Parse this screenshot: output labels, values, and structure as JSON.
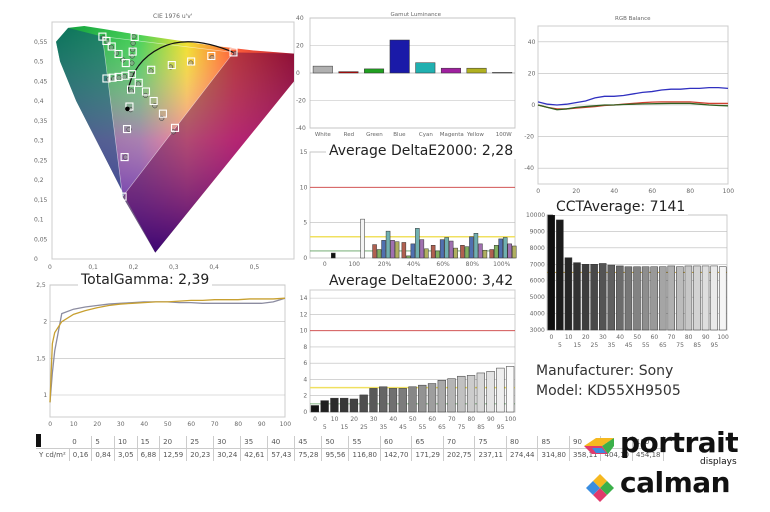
{
  "device": {
    "manufacturer_label": "Manufacturer: Sony",
    "model_label": "Model: KD55XH9505"
  },
  "logos": {
    "portrait": "portrait",
    "portrait_sub": "displays",
    "calman": "calman"
  },
  "luminance_table": {
    "row_label": "Y cd/m²",
    "levels": [
      "0",
      "5",
      "10",
      "15",
      "20",
      "25",
      "30",
      "35",
      "40",
      "45",
      "50",
      "55",
      "60",
      "65",
      "70",
      "75",
      "80",
      "85",
      "90",
      "95",
      "100"
    ],
    "values": [
      "0,16",
      "0,84",
      "3,05",
      "6,88",
      "12,59",
      "20,23",
      "30,24",
      "42,61",
      "57,43",
      "75,28",
      "95,56",
      "116,80",
      "142,70",
      "171,29",
      "202,75",
      "237,11",
      "274,44",
      "314,80",
      "358,11",
      "404,10",
      "454,18"
    ]
  },
  "chart_data": [
    {
      "id": "cie",
      "type": "scatter",
      "title": "CIE 1976 u'v'",
      "xlabel": "",
      "ylabel": "",
      "xlim": [
        0,
        0.6
      ],
      "ylim": [
        0,
        0.6
      ],
      "x_ticks": [
        "0",
        "0,1",
        "0,2",
        "0,3",
        "0,4",
        "0,5"
      ],
      "y_ticks": [
        "0",
        "0,05",
        "0,1",
        "0,15",
        "0,2",
        "0,25",
        "0,3",
        "0,35",
        "0,4",
        "0,45",
        "0,5",
        "0,55"
      ],
      "gamut_triangle": [
        [
          0.45,
          0.523
        ],
        [
          0.125,
          0.563
        ],
        [
          0.175,
          0.158
        ]
      ],
      "white_point": [
        0.198,
        0.468
      ],
      "targets": [
        [
          0.45,
          0.523
        ],
        [
          0.395,
          0.514
        ],
        [
          0.345,
          0.5
        ],
        [
          0.297,
          0.491
        ],
        [
          0.246,
          0.479
        ],
        [
          0.125,
          0.563
        ],
        [
          0.135,
          0.552
        ],
        [
          0.148,
          0.538
        ],
        [
          0.165,
          0.519
        ],
        [
          0.183,
          0.496
        ],
        [
          0.135,
          0.457
        ],
        [
          0.15,
          0.459
        ],
        [
          0.165,
          0.461
        ],
        [
          0.182,
          0.464
        ],
        [
          0.198,
          0.468
        ],
        [
          0.175,
          0.158
        ],
        [
          0.18,
          0.258
        ],
        [
          0.186,
          0.329
        ],
        [
          0.192,
          0.386
        ],
        [
          0.305,
          0.332
        ],
        [
          0.275,
          0.368
        ],
        [
          0.252,
          0.4
        ],
        [
          0.233,
          0.424
        ],
        [
          0.215,
          0.446
        ],
        [
          0.196,
          0.429
        ],
        [
          0.205,
          0.562
        ],
        [
          0.2,
          0.525
        ]
      ],
      "measured": [
        [
          0.455,
          0.52
        ],
        [
          0.397,
          0.51
        ],
        [
          0.344,
          0.496
        ],
        [
          0.294,
          0.486
        ],
        [
          0.245,
          0.476
        ],
        [
          0.128,
          0.56
        ],
        [
          0.137,
          0.55
        ],
        [
          0.147,
          0.536
        ],
        [
          0.16,
          0.521
        ],
        [
          0.176,
          0.504
        ],
        [
          0.141,
          0.455
        ],
        [
          0.153,
          0.456
        ],
        [
          0.166,
          0.459
        ],
        [
          0.18,
          0.462
        ],
        [
          0.196,
          0.467
        ],
        [
          0.182,
          0.258
        ],
        [
          0.191,
          0.328
        ],
        [
          0.195,
          0.378
        ],
        [
          0.301,
          0.322
        ],
        [
          0.272,
          0.356
        ],
        [
          0.255,
          0.388
        ],
        [
          0.232,
          0.414
        ],
        [
          0.214,
          0.443
        ],
        [
          0.197,
          0.425
        ],
        [
          0.203,
          0.563
        ],
        [
          0.201,
          0.546
        ],
        [
          0.2,
          0.53
        ],
        [
          0.199,
          0.514
        ],
        [
          0.198,
          0.496
        ]
      ],
      "black_point": [
        0.187,
        0.38
      ]
    },
    {
      "id": "gamut-luminance",
      "type": "bar",
      "title": "Gamut Luminance",
      "categories": [
        "White",
        "Red",
        "Green",
        "Blue",
        "Cyan",
        "Magenta",
        "Yellow",
        "100W"
      ],
      "values": [
        5,
        1,
        3,
        24,
        7.5,
        3.5,
        3.5,
        0.5
      ],
      "colors": [
        "#b0b0b0",
        "#c00000",
        "#20a020",
        "#1a1aa8",
        "#20b0b0",
        "#a020a0",
        "#b0b020",
        "#d0d0d0"
      ],
      "ylim": [
        -40,
        40
      ],
      "y_ticks": [
        "-40",
        "-20",
        "0",
        "20",
        "40"
      ]
    },
    {
      "id": "colorchecker-de",
      "type": "bar",
      "title": "Average DeltaE2000: 2,28",
      "groups": [
        "0",
        "100",
        "20%",
        "40%",
        "60%",
        "80%",
        "100%"
      ],
      "series_colors": [
        "#b06050",
        "#80b060",
        "#5070b0",
        "#70b0b0",
        "#a070b0",
        "#b0b060"
      ],
      "values": [
        [
          0.7
        ],
        [
          5.5
        ],
        [
          1.9,
          1.2,
          2.5,
          3.8,
          2.5,
          2.3
        ],
        [
          2.2,
          0.3,
          2.0,
          4.2,
          2.6,
          1.3
        ],
        [
          1.8,
          1.0,
          2.6,
          2.9,
          2.4,
          1.4
        ],
        [
          1.8,
          1.6,
          3.0,
          3.5,
          2.0,
          1.1
        ],
        [
          1.2,
          1.8,
          2.7,
          2.9,
          2.0,
          1.7
        ]
      ],
      "ylim": [
        0,
        15
      ],
      "y_ticks": [
        "0",
        "5",
        "10",
        "15"
      ],
      "thresholds": {
        "red": 10,
        "yellow": 3,
        "green": 1
      }
    },
    {
      "id": "rgb-balance",
      "type": "line",
      "title": "RGB Balance",
      "x": [
        0,
        5,
        10,
        15,
        20,
        25,
        30,
        35,
        40,
        45,
        50,
        55,
        60,
        65,
        70,
        75,
        80,
        85,
        90,
        95,
        100
      ],
      "series": [
        {
          "name": "Red",
          "color": "#d04030",
          "values": [
            0,
            -1.5,
            -2.5,
            -2.5,
            -2,
            -1.5,
            -1,
            -0.3,
            0,
            0.5,
            1,
            1.5,
            1.8,
            2,
            2,
            2,
            2,
            1.5,
            1,
            1,
            1
          ]
        },
        {
          "name": "Green",
          "color": "#306020",
          "values": [
            0,
            -1.5,
            -3,
            -2.5,
            -1.5,
            -1,
            -0.5,
            0,
            0,
            0.3,
            0.5,
            0.7,
            0.8,
            0.9,
            1,
            1,
            1,
            0.5,
            0,
            -0.3,
            -0.5
          ]
        },
        {
          "name": "Blue",
          "color": "#3030c0",
          "values": [
            2,
            0.5,
            0,
            0.5,
            1.5,
            2.5,
            4.5,
            5.5,
            5.5,
            6,
            7,
            8,
            8.5,
            9.5,
            10,
            10,
            10.5,
            10.5,
            11,
            11,
            10.5
          ]
        }
      ],
      "xlim": [
        0,
        100
      ],
      "ylim": [
        -50,
        50
      ],
      "x_ticks": [
        "0",
        "20",
        "40",
        "60",
        "80",
        "100"
      ],
      "y_ticks": [
        "-40",
        "-20",
        "0",
        "20",
        "40"
      ]
    },
    {
      "id": "grayscale-de",
      "type": "bar",
      "title": "Average DeltaE2000: 3,42",
      "categories": [
        "0",
        "5",
        "10",
        "15",
        "20",
        "25",
        "30",
        "35",
        "40",
        "45",
        "50",
        "55",
        "60",
        "65",
        "70",
        "75",
        "80",
        "85",
        "90",
        "95",
        "100"
      ],
      "values": [
        0.8,
        1.4,
        1.7,
        1.7,
        1.6,
        2.1,
        2.9,
        3.1,
        2.9,
        2.9,
        3.1,
        3.3,
        3.5,
        3.9,
        4.1,
        4.4,
        4.5,
        4.8,
        5.0,
        5.4,
        5.6
      ],
      "ylim": [
        0,
        15
      ],
      "y_ticks": [
        "0",
        "2",
        "4",
        "6",
        "8",
        "10",
        "12",
        "14"
      ],
      "thresholds": {
        "red": 10,
        "yellow": 3,
        "green": 1
      }
    },
    {
      "id": "cct",
      "type": "bar",
      "title": "CCTAverage: 7141",
      "categories": [
        "0",
        "5",
        "10",
        "15",
        "20",
        "25",
        "30",
        "35",
        "40",
        "45",
        "50",
        "55",
        "60",
        "65",
        "70",
        "75",
        "80",
        "85",
        "90",
        "95",
        "100"
      ],
      "values": [
        10000,
        9700,
        7400,
        7100,
        7000,
        7000,
        7050,
        6950,
        6900,
        6850,
        6850,
        6850,
        6850,
        6850,
        6900,
        6850,
        6900,
        6900,
        6900,
        6900,
        6850
      ],
      "ylim": [
        3000,
        10000
      ],
      "y_ticks": [
        "3000",
        "4000",
        "5000",
        "6000",
        "7000",
        "8000",
        "9000",
        "10000"
      ],
      "target": 6504
    },
    {
      "id": "gamma",
      "type": "line",
      "title": "TotalGamma: 2,39",
      "x": [
        0,
        1,
        2,
        5,
        10,
        15,
        20,
        25,
        30,
        35,
        40,
        45,
        50,
        55,
        60,
        65,
        70,
        75,
        80,
        85,
        90,
        95,
        100
      ],
      "series": [
        {
          "name": "Measured",
          "color": "#8c8ca0",
          "values": [
            0.9,
            1.3,
            1.6,
            2.11,
            2.17,
            2.2,
            2.22,
            2.24,
            2.25,
            2.26,
            2.27,
            2.27,
            2.27,
            2.26,
            2.26,
            2.25,
            2.25,
            2.25,
            2.25,
            2.25,
            2.25,
            2.27,
            2.32
          ]
        },
        {
          "name": "Target",
          "color": "#c8a030",
          "values": [
            0.9,
            1.7,
            1.85,
            2.0,
            2.1,
            2.15,
            2.19,
            2.22,
            2.24,
            2.25,
            2.26,
            2.27,
            2.27,
            2.28,
            2.29,
            2.29,
            2.3,
            2.3,
            2.3,
            2.31,
            2.31,
            2.31,
            2.32
          ]
        }
      ],
      "xlim": [
        0,
        100
      ],
      "ylim": [
        0.7,
        2.5
      ],
      "x_ticks": [
        "0",
        "10",
        "20",
        "30",
        "40",
        "50",
        "60",
        "70",
        "80",
        "90",
        "100"
      ],
      "y_ticks": [
        "1",
        "1,5",
        "2",
        "2,5"
      ]
    }
  ]
}
